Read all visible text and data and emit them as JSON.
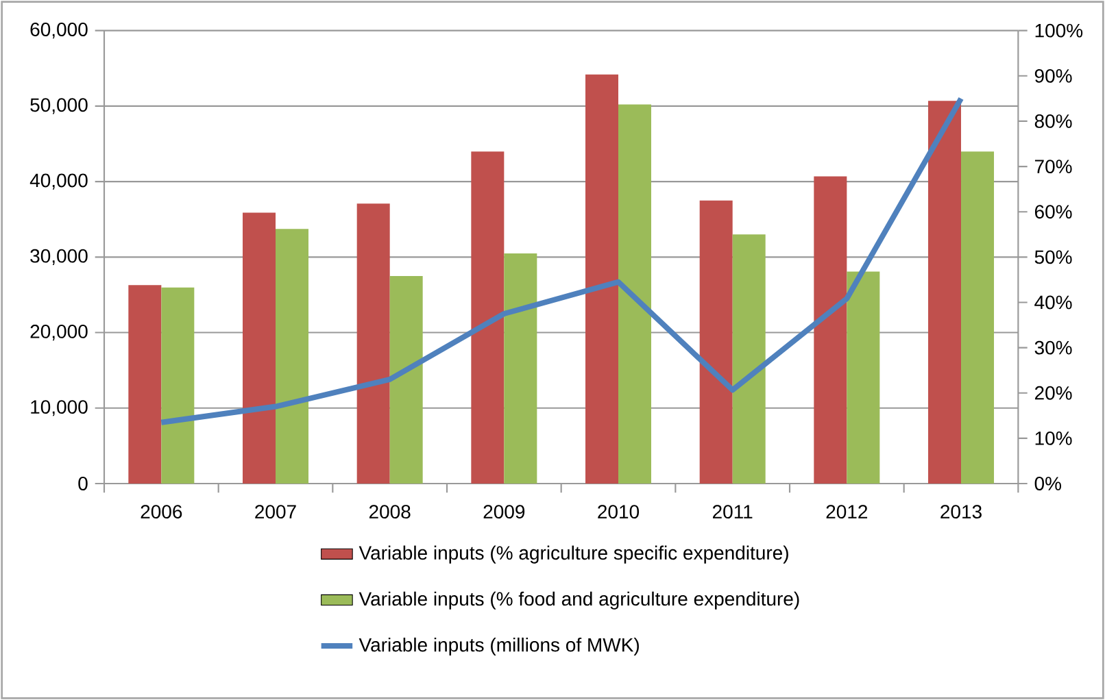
{
  "chart_data": {
    "type": "bar",
    "categories": [
      "2006",
      "2007",
      "2008",
      "2009",
      "2010",
      "2011",
      "2012",
      "2013"
    ],
    "series": [
      {
        "name": "Variable inputs (% agriculture specific expenditure)",
        "color": "#c0504d",
        "axis": "y2",
        "values": [
          43.8,
          59.8,
          61.8,
          73.3,
          90.3,
          62.5,
          67.8,
          84.5
        ]
      },
      {
        "name": "Variable inputs (% food and agriculture expenditure)",
        "color": "#9bbb59",
        "axis": "y2",
        "values": [
          43.3,
          56.2,
          45.8,
          50.8,
          83.7,
          55.0,
          46.8,
          73.3
        ]
      },
      {
        "name": "Variable inputs (millions of MWK)",
        "color": "#4f81bd",
        "type": "line",
        "values": [
          8100,
          10200,
          13800,
          22500,
          26700,
          12400,
          24500,
          51000
        ]
      }
    ],
    "ylim": [
      0,
      60000
    ],
    "yticks": [
      0,
      {
        "value": 10000,
        "label": "10,000"
      },
      {
        "value": 20000,
        "label": "20,000"
      },
      {
        "value": 30000,
        "label": "30,000"
      },
      {
        "value": 40000,
        "label": "40,000"
      },
      {
        "value": 50000,
        "label": "50,000"
      },
      {
        "value": 60000,
        "label": "60,000"
      }
    ],
    "y2lim": [
      0,
      100
    ],
    "y2ticks": [
      {
        "value": 0,
        "label": "0%"
      },
      {
        "value": 10,
        "label": "10%"
      },
      {
        "value": 20,
        "label": "20%"
      },
      {
        "value": 30,
        "label": "30%"
      },
      {
        "value": 40,
        "label": "40%"
      },
      {
        "value": 50,
        "label": "50%"
      },
      {
        "value": 60,
        "label": "60%"
      },
      {
        "value": 70,
        "label": "70%"
      },
      {
        "value": 80,
        "label": "80%"
      },
      {
        "value": 90,
        "label": "90%"
      },
      {
        "value": 100,
        "label": "100%"
      }
    ],
    "grid": "y",
    "legend": "bottom"
  }
}
